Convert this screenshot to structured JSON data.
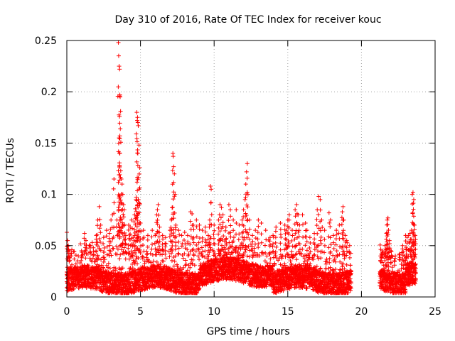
{
  "chart_data": {
    "type": "scatter",
    "title": "Day 310 of 2016, Rate Of TEC Index for receiver kouc",
    "xlabel": "GPS time / hours",
    "ylabel": "ROTI / TECUs",
    "xlim": [
      0,
      25
    ],
    "ylim": [
      0,
      0.25
    ],
    "xticks": [
      0,
      5,
      10,
      15,
      20,
      25
    ],
    "xtick_labels": [
      "0",
      "5",
      "10",
      "15",
      "20",
      "25"
    ],
    "yticks": [
      0,
      0.05,
      0.1,
      0.15,
      0.2,
      0.25
    ],
    "ytick_labels": [
      "0",
      "0.05",
      "0.1",
      "0.15",
      "0.2",
      "0.25"
    ],
    "grid": true,
    "marker": "+",
    "color": "#ff0000",
    "series": [
      {
        "name": "ROTI",
        "note": "dense band of ~0.005-0.04 TECU/s from 0 to 19.3 h and 21.2 to 23.7 h, no data 19.3-21.2 h",
        "points": [
          [
            0.0,
            0.063
          ],
          [
            0.05,
            0.055
          ],
          [
            0.1,
            0.05
          ],
          [
            0.2,
            0.045
          ],
          [
            0.3,
            0.04
          ],
          [
            0.5,
            0.037
          ],
          [
            1.0,
            0.045
          ],
          [
            1.2,
            0.062
          ],
          [
            1.3,
            0.055
          ],
          [
            1.6,
            0.05
          ],
          [
            1.8,
            0.048
          ],
          [
            2.0,
            0.06
          ],
          [
            2.1,
            0.075
          ],
          [
            2.2,
            0.088
          ],
          [
            2.3,
            0.07
          ],
          [
            2.5,
            0.058
          ],
          [
            2.7,
            0.065
          ],
          [
            2.9,
            0.062
          ],
          [
            3.0,
            0.075
          ],
          [
            3.1,
            0.08
          ],
          [
            3.2,
            0.115
          ],
          [
            3.4,
            0.075
          ],
          [
            3.5,
            0.248
          ],
          [
            3.52,
            0.235
          ],
          [
            3.55,
            0.225
          ],
          [
            3.58,
            0.222
          ],
          [
            3.6,
            0.197
          ],
          [
            3.62,
            0.195
          ],
          [
            3.65,
            0.181
          ],
          [
            3.6,
            0.157
          ],
          [
            3.55,
            0.155
          ],
          [
            3.6,
            0.14
          ],
          [
            3.5,
            0.123
          ],
          [
            3.7,
            0.115
          ],
          [
            3.75,
            0.11
          ],
          [
            3.8,
            0.1
          ],
          [
            3.7,
            0.092
          ],
          [
            3.85,
            0.09
          ],
          [
            3.9,
            0.085
          ],
          [
            3.6,
            0.075
          ],
          [
            3.8,
            0.07
          ],
          [
            4.0,
            0.06
          ],
          [
            4.2,
            0.07
          ],
          [
            4.3,
            0.068
          ],
          [
            4.4,
            0.075
          ],
          [
            4.5,
            0.058
          ],
          [
            4.6,
            0.08
          ],
          [
            4.65,
            0.086
          ],
          [
            4.7,
            0.095
          ],
          [
            4.75,
            0.18
          ],
          [
            4.8,
            0.175
          ],
          [
            4.78,
            0.172
          ],
          [
            4.82,
            0.17
          ],
          [
            4.85,
            0.167
          ],
          [
            4.9,
            0.148
          ],
          [
            4.95,
            0.126
          ],
          [
            4.9,
            0.105
          ],
          [
            4.85,
            0.095
          ],
          [
            4.8,
            0.09
          ],
          [
            5.0,
            0.072
          ],
          [
            5.2,
            0.065
          ],
          [
            5.5,
            0.06
          ],
          [
            5.8,
            0.065
          ],
          [
            6.0,
            0.06
          ],
          [
            6.1,
            0.08
          ],
          [
            6.15,
            0.085
          ],
          [
            6.2,
            0.09
          ],
          [
            6.3,
            0.068
          ],
          [
            6.5,
            0.06
          ],
          [
            6.7,
            0.058
          ],
          [
            7.0,
            0.065
          ],
          [
            7.1,
            0.075
          ],
          [
            7.15,
            0.087
          ],
          [
            7.2,
            0.14
          ],
          [
            7.22,
            0.137
          ],
          [
            7.25,
            0.127
          ],
          [
            7.3,
            0.12
          ],
          [
            7.35,
            0.1
          ],
          [
            7.4,
            0.07
          ],
          [
            7.6,
            0.065
          ],
          [
            7.8,
            0.06
          ],
          [
            8.0,
            0.063
          ],
          [
            8.2,
            0.06
          ],
          [
            8.4,
            0.083
          ],
          [
            8.5,
            0.081
          ],
          [
            8.6,
            0.07
          ],
          [
            8.8,
            0.075
          ],
          [
            9.0,
            0.07
          ],
          [
            9.2,
            0.065
          ],
          [
            9.4,
            0.068
          ],
          [
            9.6,
            0.06
          ],
          [
            9.7,
            0.075
          ],
          [
            9.75,
            0.108
          ],
          [
            9.8,
            0.105
          ],
          [
            10.0,
            0.07
          ],
          [
            10.3,
            0.075
          ],
          [
            10.4,
            0.09
          ],
          [
            10.5,
            0.087
          ],
          [
            10.6,
            0.08
          ],
          [
            10.8,
            0.068
          ],
          [
            11.0,
            0.09
          ],
          [
            11.1,
            0.085
          ],
          [
            11.3,
            0.075
          ],
          [
            11.5,
            0.085
          ],
          [
            11.7,
            0.07
          ],
          [
            11.9,
            0.075
          ],
          [
            12.0,
            0.085
          ],
          [
            12.1,
            0.095
          ],
          [
            12.15,
            0.11
          ],
          [
            12.2,
            0.122
          ],
          [
            12.25,
            0.13
          ],
          [
            12.3,
            0.1
          ],
          [
            12.4,
            0.075
          ],
          [
            12.6,
            0.06
          ],
          [
            12.8,
            0.065
          ],
          [
            13.0,
            0.075
          ],
          [
            13.2,
            0.072
          ],
          [
            13.5,
            0.065
          ],
          [
            13.8,
            0.058
          ],
          [
            14.0,
            0.06
          ],
          [
            14.2,
            0.068
          ],
          [
            14.5,
            0.072
          ],
          [
            14.8,
            0.07
          ],
          [
            14.9,
            0.065
          ],
          [
            15.0,
            0.075
          ],
          [
            15.1,
            0.08
          ],
          [
            15.3,
            0.065
          ],
          [
            15.5,
            0.085
          ],
          [
            15.6,
            0.09
          ],
          [
            15.7,
            0.08
          ],
          [
            15.8,
            0.07
          ],
          [
            16.0,
            0.08
          ],
          [
            16.2,
            0.072
          ],
          [
            16.3,
            0.065
          ],
          [
            16.5,
            0.058
          ],
          [
            16.8,
            0.062
          ],
          [
            17.0,
            0.085
          ],
          [
            17.1,
            0.098
          ],
          [
            17.2,
            0.095
          ],
          [
            17.3,
            0.075
          ],
          [
            17.5,
            0.065
          ],
          [
            17.8,
            0.082
          ],
          [
            17.9,
            0.075
          ],
          [
            18.1,
            0.06
          ],
          [
            18.3,
            0.065
          ],
          [
            18.5,
            0.07
          ],
          [
            18.7,
            0.083
          ],
          [
            18.75,
            0.088
          ],
          [
            18.8,
            0.075
          ],
          [
            18.9,
            0.06
          ],
          [
            19.0,
            0.055
          ],
          [
            19.2,
            0.05
          ],
          [
            21.3,
            0.04
          ],
          [
            21.4,
            0.045
          ],
          [
            21.6,
            0.05
          ],
          [
            21.7,
            0.062
          ],
          [
            21.75,
            0.075
          ],
          [
            21.8,
            0.077
          ],
          [
            21.9,
            0.055
          ],
          [
            22.0,
            0.045
          ],
          [
            22.3,
            0.04
          ],
          [
            22.6,
            0.042
          ],
          [
            22.8,
            0.05
          ],
          [
            23.0,
            0.06
          ],
          [
            23.1,
            0.058
          ],
          [
            23.2,
            0.06
          ],
          [
            23.3,
            0.062
          ],
          [
            23.4,
            0.065
          ],
          [
            23.45,
            0.1
          ],
          [
            23.5,
            0.102
          ],
          [
            23.55,
            0.095
          ],
          [
            23.6,
            0.07
          ],
          [
            23.65,
            0.06
          ]
        ]
      }
    ]
  }
}
